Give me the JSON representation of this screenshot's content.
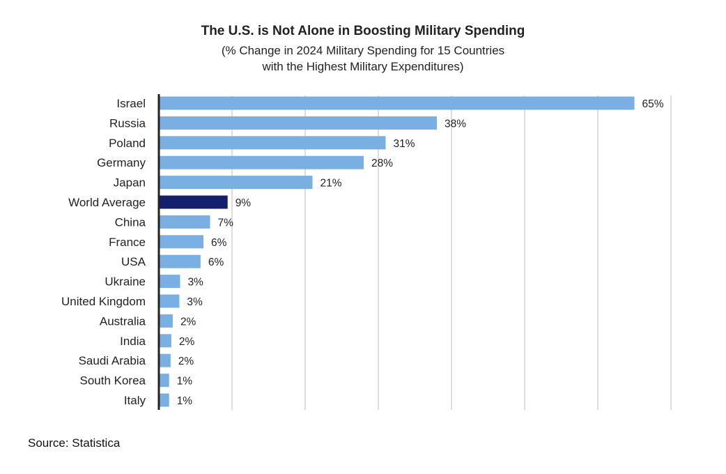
{
  "chart_data": {
    "type": "bar",
    "orientation": "horizontal",
    "title": "The U.S. is Not Alone in Boosting Military Spending",
    "subtitle": [
      "(% Change in 2024 Military Spending for 15 Countries",
      "with the Highest Military Expenditures)"
    ],
    "xlabel": "",
    "ylabel": "",
    "xlim": [
      0,
      70
    ],
    "grid": true,
    "gridlines": [
      10,
      20,
      30,
      40,
      50,
      60,
      70
    ],
    "categories": [
      "Israel",
      "Russia",
      "Poland",
      "Germany",
      "Japan",
      "World Average",
      "China",
      "France",
      "USA",
      "Ukraine",
      "United Kingdom",
      "Australia",
      "India",
      "Saudi Arabia",
      "South Korea",
      "Italy"
    ],
    "values": [
      65,
      38,
      31,
      28,
      21,
      9.4,
      7,
      6.1,
      5.7,
      2.9,
      2.8,
      1.9,
      1.7,
      1.6,
      1.4,
      1.4
    ],
    "data_labels": [
      "65%",
      "38%",
      "31%",
      "28%",
      "21%",
      "9%",
      "7%",
      "6%",
      "6%",
      "3%",
      "3%",
      "2%",
      "2%",
      "2%",
      "1%",
      "1%"
    ],
    "highlight": "World Average",
    "colors": {
      "bar": "#7aafe3",
      "highlight": "#14206b",
      "grid": "#dddddd",
      "axis": "#222222"
    }
  },
  "source": "Source: Statistica"
}
